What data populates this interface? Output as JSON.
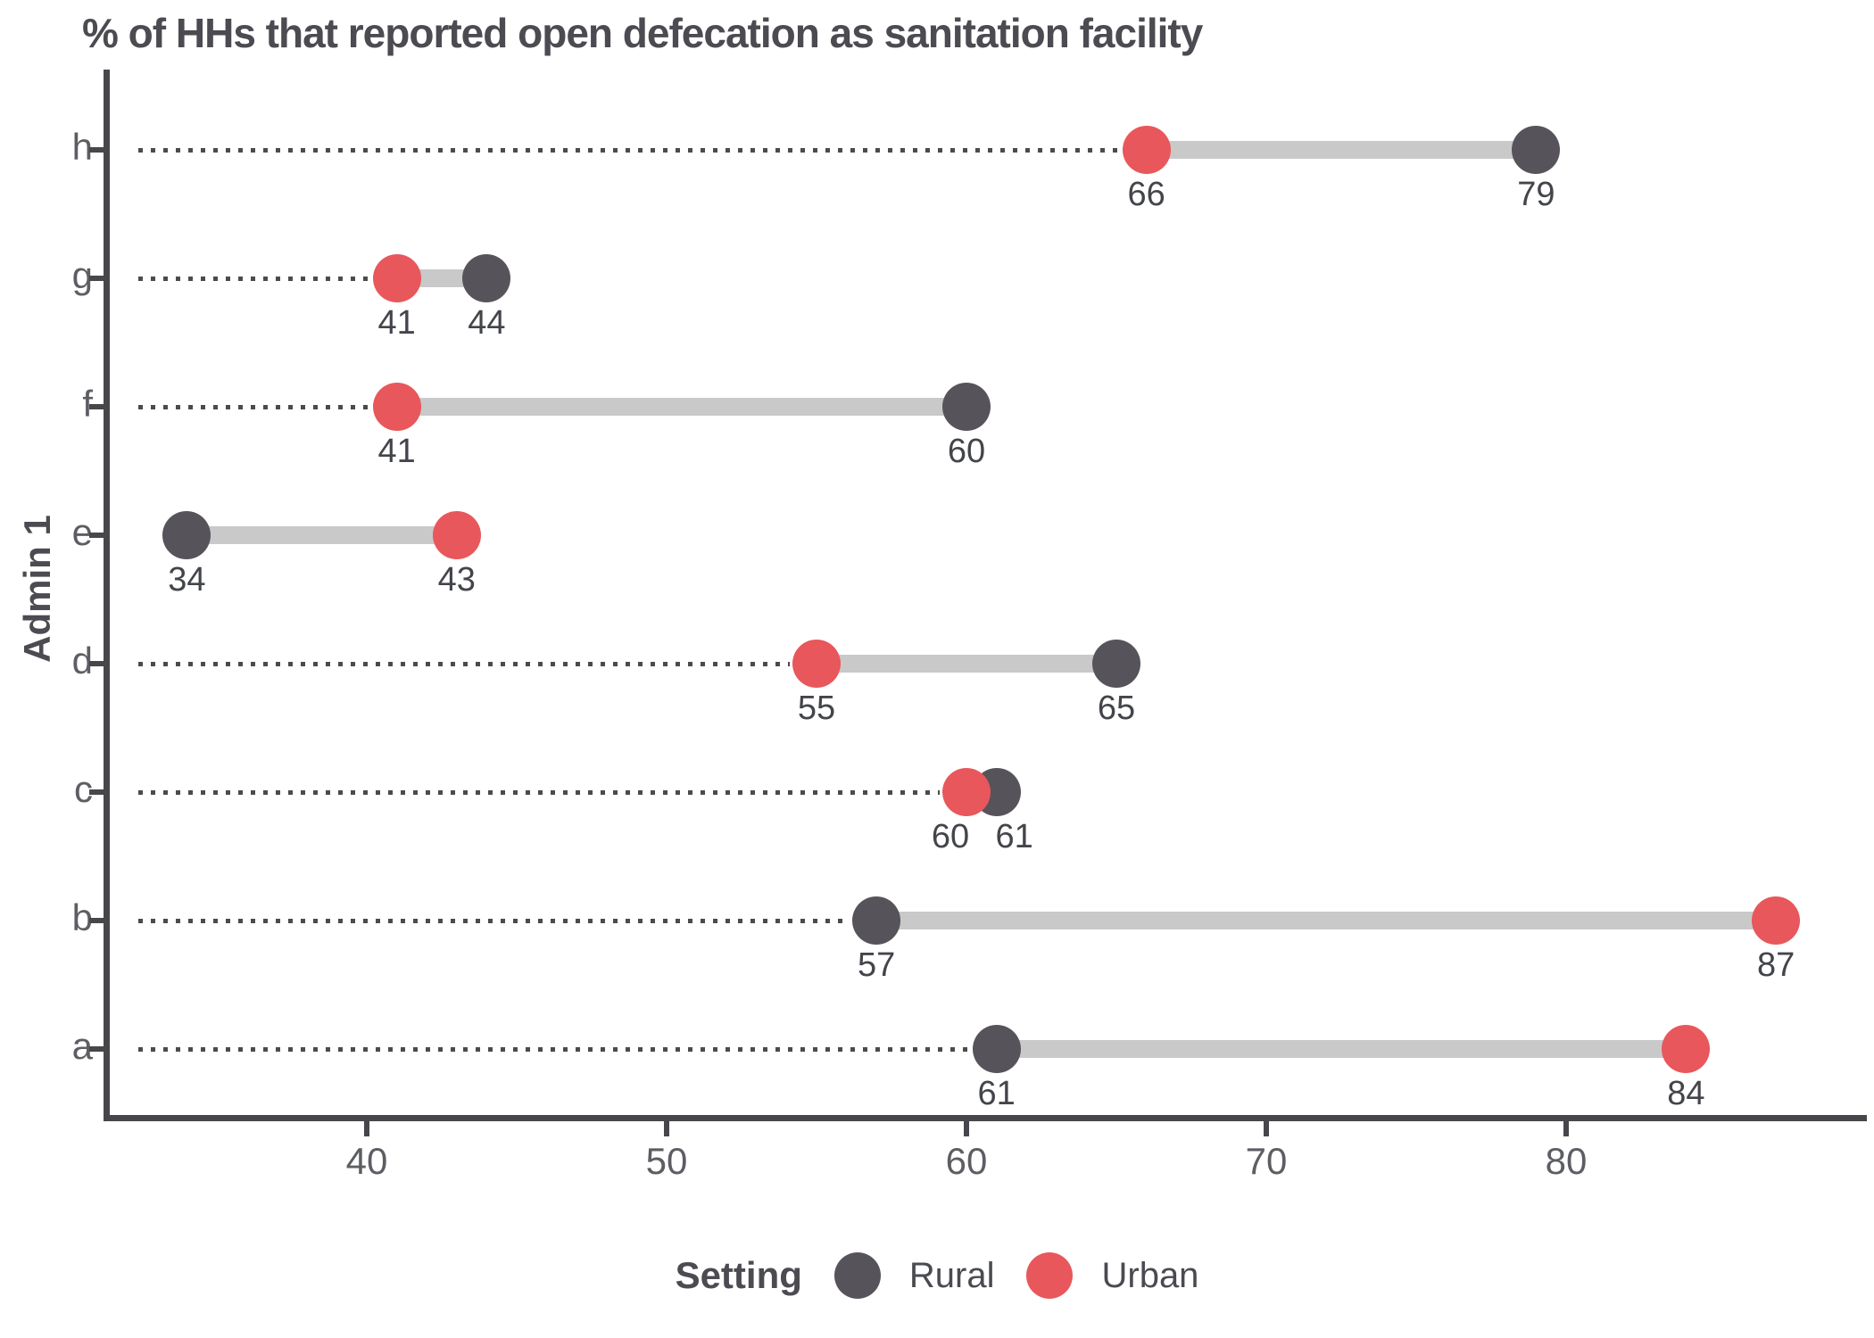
{
  "chart_data": {
    "type": "scatter",
    "variant": "dumbbell",
    "title": "% of HHs that reported open defecation as sanitation facility",
    "xlabel": "",
    "ylabel": "Admin 1",
    "legend_title": "Setting",
    "legend_position": "bottom",
    "grid": false,
    "point_labels_shown": true,
    "categories": [
      "h",
      "g",
      "f",
      "e",
      "d",
      "c",
      "b",
      "a"
    ],
    "series": [
      {
        "name": "Rural",
        "color": "#57535a",
        "values": [
          79,
          44,
          60,
          34,
          65,
          61,
          57,
          61
        ]
      },
      {
        "name": "Urban",
        "color": "#e8575b",
        "values": [
          66,
          41,
          41,
          43,
          55,
          60,
          87,
          84
        ]
      }
    ],
    "x_ticks": [
      40,
      50,
      60,
      70,
      80
    ],
    "xlim": [
      31.3,
      90
    ]
  },
  "colors": {
    "connector": "#c9c9c9",
    "leader_dots": "#4b4b4b",
    "axis": "#47474b",
    "value_text": "#43454b",
    "tick_text": "#5d5e63",
    "title_text": "#4b4b51",
    "background": "#ffffff"
  }
}
